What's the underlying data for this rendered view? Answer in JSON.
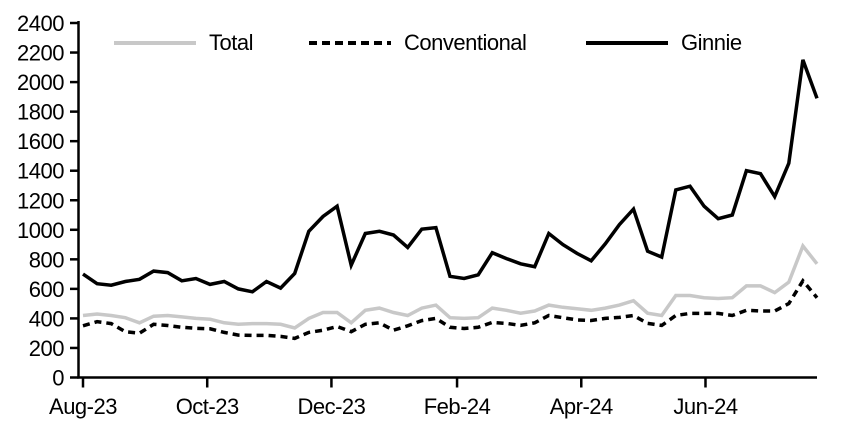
{
  "chart_data": {
    "type": "line",
    "title": "",
    "xlabel": "",
    "ylabel": "",
    "grid": false,
    "legend_position": "top",
    "y_axis": {
      "min": 0,
      "max": 2400,
      "tick_step": 200,
      "tick_labels": [
        "0",
        "200",
        "400",
        "600",
        "800",
        "1000",
        "1200",
        "1400",
        "1600",
        "1800",
        "2000",
        "2200",
        "2400"
      ]
    },
    "x_axis": {
      "tick_labels": [
        "Aug-23",
        "Oct-23",
        "Dec-23",
        "Feb-24",
        "Apr-24",
        "Jun-24"
      ],
      "tick_positions_weeks": [
        0,
        8.8,
        17.6,
        26.5,
        35.3,
        44.1
      ],
      "range_weeks": [
        0,
        52
      ]
    },
    "series": [
      {
        "name": "Total",
        "color": "#c8c8c8",
        "style": "solid",
        "values": [
          420,
          430,
          420,
          405,
          370,
          415,
          420,
          410,
          400,
          395,
          370,
          360,
          365,
          365,
          360,
          335,
          400,
          440,
          440,
          370,
          455,
          470,
          440,
          420,
          470,
          490,
          405,
          400,
          405,
          470,
          455,
          435,
          450,
          490,
          475,
          465,
          455,
          470,
          490,
          520,
          435,
          420,
          555,
          555,
          540,
          535,
          540,
          620,
          620,
          575,
          645,
          890,
          770
        ]
      },
      {
        "name": "Conventional",
        "color": "#000000",
        "style": "dashed",
        "values": [
          350,
          378,
          365,
          310,
          300,
          360,
          352,
          340,
          333,
          330,
          305,
          287,
          285,
          285,
          278,
          265,
          305,
          320,
          345,
          310,
          360,
          370,
          320,
          350,
          385,
          400,
          340,
          332,
          340,
          373,
          366,
          353,
          370,
          420,
          405,
          390,
          386,
          400,
          407,
          420,
          366,
          353,
          420,
          434,
          434,
          434,
          420,
          455,
          450,
          450,
          500,
          655,
          540
        ]
      },
      {
        "name": "Ginnie",
        "color": "#000000",
        "style": "solid",
        "values": [
          700,
          635,
          625,
          650,
          665,
          720,
          710,
          655,
          670,
          630,
          650,
          600,
          580,
          650,
          605,
          705,
          990,
          1090,
          1160,
          760,
          975,
          990,
          965,
          880,
          1005,
          1015,
          685,
          670,
          695,
          845,
          805,
          770,
          750,
          975,
          900,
          840,
          790,
          905,
          1035,
          1140,
          855,
          815,
          1270,
          1295,
          1160,
          1075,
          1100,
          1400,
          1380,
          1225,
          1450,
          2150,
          1890
        ]
      }
    ]
  }
}
